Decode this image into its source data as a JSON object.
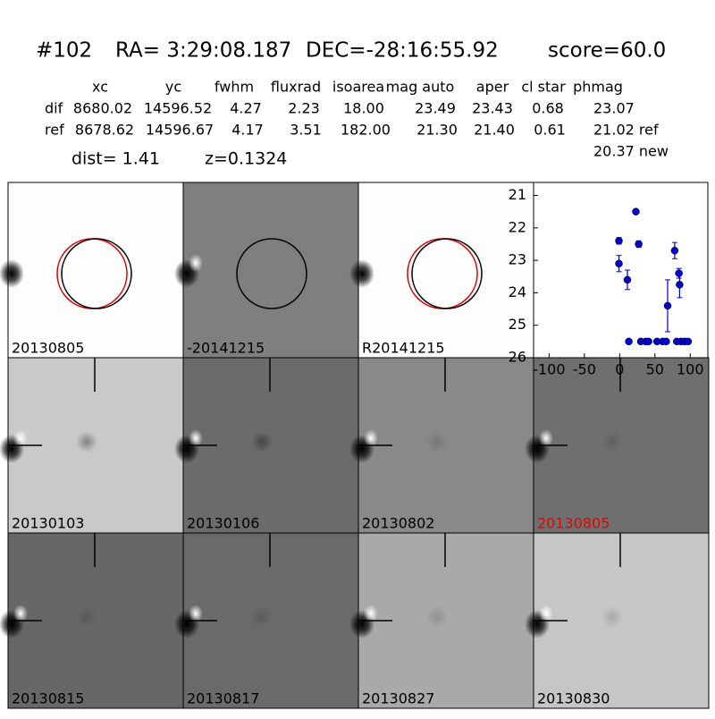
{
  "header": {
    "id": "#102",
    "ra": "RA= 3:29:08.187",
    "dec": "DEC=-28:16:55.92",
    "score": "score=60.0"
  },
  "table": {
    "columns": [
      "xc",
      "yc",
      "fwhm",
      "fluxrad",
      "isoarea",
      "mag auto",
      "aper",
      "cl star",
      "phmag"
    ],
    "rows": [
      [
        "dif",
        "8680.02",
        "14596.52",
        "4.27",
        "2.23",
        "18.00",
        "23.49",
        "23.43",
        "0.68",
        "23.07"
      ],
      [
        "ref",
        "8678.62",
        "14596.67",
        "4.17",
        "3.51",
        "182.00",
        "21.30",
        "21.40",
        "0.61",
        "21.02 ref"
      ]
    ],
    "note": "20.37 new"
  },
  "dist": "dist=  1.41",
  "z": "z=0.1324",
  "stamps": [
    "20130805",
    "-20141215",
    "R20141215",
    "20130103",
    "20130106",
    "20130802",
    "20130805",
    "20130815",
    "20130817",
    "20130827",
    "20130830"
  ],
  "chart_data": {
    "type": "scatter",
    "xlim": [
      -122,
      125
    ],
    "xticks": [
      -100,
      -50,
      0,
      50,
      100
    ],
    "ylim": [
      20.6,
      26
    ],
    "yticks": [
      21,
      22,
      23,
      24,
      25,
      26
    ],
    "y_inverted": true,
    "series": [
      {
        "color": "#0000cc",
        "x": [
          -1,
          -1,
          11,
          23,
          27,
          13,
          30,
          37,
          41,
          53,
          61,
          66,
          68,
          78,
          84,
          85,
          81,
          87,
          92,
          97
        ],
        "values": [
          22.4,
          23.1,
          23.6,
          21.5,
          22.5,
          25.5,
          25.5,
          25.5,
          25.5,
          25.5,
          25.5,
          25.5,
          24.4,
          22.7,
          23.4,
          23.75,
          25.5,
          25.5,
          25.5,
          25.5
        ],
        "errors": [
          0.1,
          0.25,
          0.3,
          null,
          0.1,
          null,
          null,
          null,
          null,
          null,
          null,
          null,
          0.8,
          0.25,
          0.15,
          0.4,
          null,
          null,
          null,
          null
        ]
      }
    ]
  }
}
